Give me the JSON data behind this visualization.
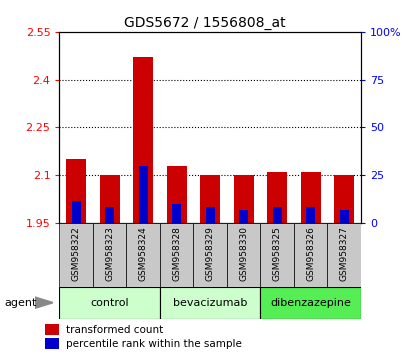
{
  "title": "GDS5672 / 1556808_at",
  "samples": [
    "GSM958322",
    "GSM958323",
    "GSM958324",
    "GSM958328",
    "GSM958329",
    "GSM958330",
    "GSM958325",
    "GSM958326",
    "GSM958327"
  ],
  "bar_bottom": 1.95,
  "red_tops": [
    2.15,
    2.1,
    2.47,
    2.13,
    2.1,
    2.1,
    2.11,
    2.11,
    2.1
  ],
  "blue_tops": [
    2.02,
    2.0,
    2.13,
    2.01,
    2.0,
    1.99,
    2.0,
    2.0,
    1.99
  ],
  "ylim_left": [
    1.95,
    2.55
  ],
  "ylim_right": [
    0,
    100
  ],
  "yticks_left": [
    1.95,
    2.1,
    2.25,
    2.4,
    2.55
  ],
  "yticks_right": [
    0,
    25,
    50,
    75,
    100
  ],
  "ytick_labels_left": [
    "1.95",
    "2.1",
    "2.25",
    "2.4",
    "2.55"
  ],
  "ytick_labels_right": [
    "0",
    "25",
    "50",
    "75",
    "100%"
  ],
  "red_color": "#cc0000",
  "blue_color": "#0000cc",
  "bar_width": 0.6,
  "bg_plot": "#ffffff",
  "tick_area_bg": "#c8c8c8",
  "control_color": "#ccffcc",
  "bevacizumab_color": "#ccffcc",
  "dibenzazepine_color": "#44ee44",
  "agent_label": "agent",
  "legend_red": "transformed count",
  "legend_blue": "percentile rank within the sample",
  "groups": [
    {
      "name": "control",
      "start": 0,
      "end": 3,
      "color": "#ccffcc"
    },
    {
      "name": "bevacizumab",
      "start": 3,
      "end": 6,
      "color": "#ccffcc"
    },
    {
      "name": "dibenzazepine",
      "start": 6,
      "end": 9,
      "color": "#55ee55"
    }
  ]
}
